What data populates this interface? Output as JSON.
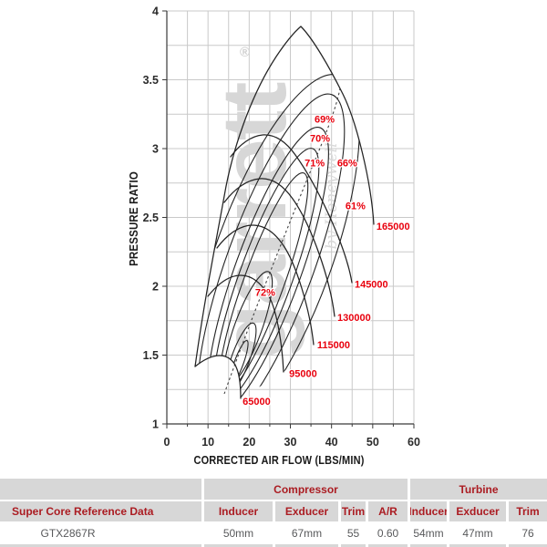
{
  "chart_data": {
    "type": "line",
    "subtype": "turbo-compressor-map",
    "title": "",
    "xlabel": "CORRECTED AIR FLOW (LBS/MIN)",
    "ylabel": "PRESSURE RATIO",
    "xlim": [
      0,
      60
    ],
    "ylim": [
      1,
      4
    ],
    "x_major_ticks": [
      0,
      10,
      20,
      30,
      40,
      50,
      60
    ],
    "y_major_ticks": [
      1,
      1.5,
      2,
      2.5,
      3,
      3.5,
      4
    ],
    "x_grid_step": 5,
    "y_grid_step": 0.25,
    "grid": true,
    "legend_position": "none",
    "label_color": "#e8000d",
    "speed_lines": [
      {
        "rpm": 65000,
        "label": "65000",
        "label_at": {
          "flow": 18.4,
          "pr": 1.14
        }
      },
      {
        "rpm": 95000,
        "label": "95000",
        "label_at": {
          "flow": 29.7,
          "pr": 1.34
        }
      },
      {
        "rpm": 115000,
        "label": "115000",
        "label_at": {
          "flow": 36.5,
          "pr": 1.55
        }
      },
      {
        "rpm": 130000,
        "label": "130000",
        "label_at": {
          "flow": 41.4,
          "pr": 1.75
        }
      },
      {
        "rpm": 145000,
        "label": "145000",
        "label_at": {
          "flow": 45.6,
          "pr": 1.99
        }
      },
      {
        "rpm": 165000,
        "label": "165000",
        "label_at": {
          "flow": 50.9,
          "pr": 2.41
        }
      }
    ],
    "efficiency_islands": [
      {
        "eta": "72%",
        "label_at": {
          "flow": 23.9,
          "pr": 1.93
        }
      },
      {
        "eta": "71%",
        "label_at": {
          "flow": 35.9,
          "pr": 2.87
        }
      },
      {
        "eta": "70%",
        "label_at": {
          "flow": 37.2,
          "pr": 3.05
        }
      },
      {
        "eta": "69%",
        "label_at": {
          "flow": 38.3,
          "pr": 3.19
        }
      },
      {
        "eta": "66%",
        "label_at": {
          "flow": 43.8,
          "pr": 2.87
        }
      },
      {
        "eta": "61%",
        "label_at": {
          "flow": 45.8,
          "pr": 2.56
        }
      }
    ],
    "map_extents": {
      "surge_bottom": {
        "flow": 6.9,
        "pr": 1.42
      },
      "peak": {
        "flow": 32.5,
        "pr": 3.88
      }
    },
    "watermark": {
      "text": "garrett",
      "registered": "®",
      "subtext": "by Honeywell"
    }
  },
  "table": {
    "header_text_color": "#ab1c22",
    "header_bg": "#d7d7d7",
    "group_header": [
      {
        "label": "",
        "span": 1
      },
      {
        "label": "Compressor",
        "span": 4
      },
      {
        "label": "Turbine",
        "span": 3
      }
    ],
    "columns": [
      "Super Core Reference Data",
      "Inducer",
      "Exducer",
      "Trim",
      "A/R",
      "Inducer",
      "Exducer",
      "Trim"
    ],
    "rows": [
      [
        "GTX2867R",
        "50mm",
        "67mm",
        "55",
        "0.60",
        "54mm",
        "47mm",
        "76"
      ]
    ]
  }
}
